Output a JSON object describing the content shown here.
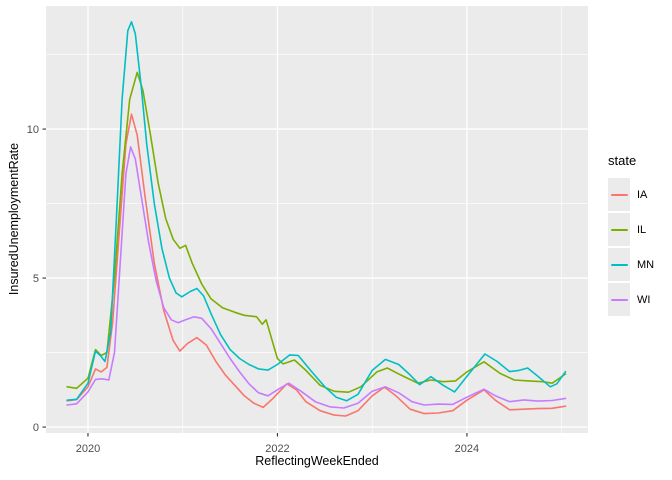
{
  "figure": {
    "background": "#FFFFFF",
    "panel_bg": "#EBEBEB",
    "grid_color": "#FFFFFF",
    "tick_mark_color": "#333333",
    "tick_label_color": "#4D4D4D",
    "axis_title_color": "#000000"
  },
  "axes": {
    "x_title": "ReflectingWeekEnded",
    "y_title": "InsuredUnemploymentRate",
    "x_ticks": [
      2020,
      2022,
      2024
    ],
    "x_tick_labels": [
      "2020",
      "2022",
      "2024"
    ],
    "x_minor_ticks": [
      2021,
      2023,
      2025
    ],
    "y_ticks": [
      0,
      5,
      10
    ],
    "y_tick_labels": [
      "0",
      "5",
      "10"
    ],
    "y_minor_ticks": [
      2.5,
      7.5,
      12.5
    ],
    "x_range": [
      2019.557,
      2025.278
    ],
    "y_range": [
      -0.2,
      14.13
    ]
  },
  "legend": {
    "title": "state",
    "position": "right",
    "entries": [
      {
        "label": "IA",
        "color": "#F8766D"
      },
      {
        "label": "IL",
        "color": "#7CAE00"
      },
      {
        "label": "MN",
        "color": "#00BFC4"
      },
      {
        "label": "WI",
        "color": "#C77CFF"
      }
    ]
  },
  "chart_data": {
    "type": "line",
    "title": "",
    "xlabel": "ReflectingWeekEnded",
    "ylabel": "InsuredUnemploymentRate",
    "xlim": [
      2019.557,
      2025.278
    ],
    "ylim": [
      -0.2,
      14.13
    ],
    "grid": true,
    "legend_position": "right",
    "legend_title": "state",
    "series": [
      {
        "name": "IA",
        "color": "#F8766D",
        "points": [
          [
            2019.78,
            0.88
          ],
          [
            2019.88,
            0.92
          ],
          [
            2020.0,
            1.35
          ],
          [
            2020.08,
            1.95
          ],
          [
            2020.14,
            1.85
          ],
          [
            2020.2,
            2.0
          ],
          [
            2020.26,
            3.5
          ],
          [
            2020.33,
            6.5
          ],
          [
            2020.4,
            9.5
          ],
          [
            2020.46,
            10.5
          ],
          [
            2020.52,
            9.8
          ],
          [
            2020.6,
            7.8
          ],
          [
            2020.7,
            5.5
          ],
          [
            2020.8,
            3.9
          ],
          [
            2020.9,
            2.9
          ],
          [
            2020.97,
            2.55
          ],
          [
            2021.05,
            2.8
          ],
          [
            2021.15,
            3.0
          ],
          [
            2021.25,
            2.75
          ],
          [
            2021.35,
            2.2
          ],
          [
            2021.45,
            1.75
          ],
          [
            2021.55,
            1.4
          ],
          [
            2021.65,
            1.05
          ],
          [
            2021.75,
            0.8
          ],
          [
            2021.85,
            0.66
          ],
          [
            2021.95,
            0.95
          ],
          [
            2022.1,
            1.45
          ],
          [
            2022.2,
            1.25
          ],
          [
            2022.3,
            0.85
          ],
          [
            2022.45,
            0.55
          ],
          [
            2022.6,
            0.4
          ],
          [
            2022.72,
            0.37
          ],
          [
            2022.85,
            0.55
          ],
          [
            2023.0,
            1.05
          ],
          [
            2023.13,
            1.34
          ],
          [
            2023.25,
            1.05
          ],
          [
            2023.4,
            0.6
          ],
          [
            2023.55,
            0.45
          ],
          [
            2023.7,
            0.47
          ],
          [
            2023.85,
            0.55
          ],
          [
            2024.0,
            0.9
          ],
          [
            2024.18,
            1.25
          ],
          [
            2024.3,
            0.9
          ],
          [
            2024.45,
            0.58
          ],
          [
            2024.6,
            0.6
          ],
          [
            2024.75,
            0.62
          ],
          [
            2024.9,
            0.63
          ],
          [
            2025.04,
            0.7
          ]
        ]
      },
      {
        "name": "IL",
        "color": "#7CAE00",
        "points": [
          [
            2019.78,
            1.35
          ],
          [
            2019.88,
            1.3
          ],
          [
            2020.0,
            1.64
          ],
          [
            2020.08,
            2.6
          ],
          [
            2020.14,
            2.4
          ],
          [
            2020.2,
            2.5
          ],
          [
            2020.28,
            5.0
          ],
          [
            2020.36,
            8.5
          ],
          [
            2020.44,
            11.0
          ],
          [
            2020.52,
            11.9
          ],
          [
            2020.58,
            11.3
          ],
          [
            2020.66,
            9.8
          ],
          [
            2020.74,
            8.2
          ],
          [
            2020.82,
            7.0
          ],
          [
            2020.9,
            6.3
          ],
          [
            2020.97,
            6.0
          ],
          [
            2021.03,
            6.1
          ],
          [
            2021.1,
            5.5
          ],
          [
            2021.2,
            4.8
          ],
          [
            2021.3,
            4.3
          ],
          [
            2021.42,
            4.0
          ],
          [
            2021.55,
            3.85
          ],
          [
            2021.65,
            3.75
          ],
          [
            2021.78,
            3.7
          ],
          [
            2021.84,
            3.45
          ],
          [
            2021.88,
            3.6
          ],
          [
            2022.0,
            2.3
          ],
          [
            2022.06,
            2.12
          ],
          [
            2022.18,
            2.25
          ],
          [
            2022.3,
            1.9
          ],
          [
            2022.45,
            1.4
          ],
          [
            2022.6,
            1.2
          ],
          [
            2022.75,
            1.17
          ],
          [
            2022.88,
            1.35
          ],
          [
            2023.05,
            1.85
          ],
          [
            2023.16,
            1.98
          ],
          [
            2023.3,
            1.75
          ],
          [
            2023.48,
            1.47
          ],
          [
            2023.62,
            1.58
          ],
          [
            2023.75,
            1.52
          ],
          [
            2023.88,
            1.55
          ],
          [
            2024.0,
            1.85
          ],
          [
            2024.18,
            2.19
          ],
          [
            2024.35,
            1.8
          ],
          [
            2024.5,
            1.58
          ],
          [
            2024.65,
            1.55
          ],
          [
            2024.8,
            1.52
          ],
          [
            2024.9,
            1.47
          ],
          [
            2025.04,
            1.78
          ]
        ]
      },
      {
        "name": "MN",
        "color": "#00BFC4",
        "points": [
          [
            2019.78,
            0.9
          ],
          [
            2019.88,
            0.93
          ],
          [
            2020.0,
            1.47
          ],
          [
            2020.08,
            2.55
          ],
          [
            2020.13,
            2.4
          ],
          [
            2020.18,
            2.2
          ],
          [
            2020.24,
            3.2
          ],
          [
            2020.3,
            7.0
          ],
          [
            2020.36,
            11.0
          ],
          [
            2020.42,
            13.3
          ],
          [
            2020.46,
            13.6
          ],
          [
            2020.5,
            13.2
          ],
          [
            2020.56,
            11.5
          ],
          [
            2020.62,
            9.5
          ],
          [
            2020.7,
            7.5
          ],
          [
            2020.78,
            6.0
          ],
          [
            2020.86,
            5.0
          ],
          [
            2020.93,
            4.5
          ],
          [
            2020.99,
            4.37
          ],
          [
            2021.08,
            4.55
          ],
          [
            2021.15,
            4.65
          ],
          [
            2021.22,
            4.4
          ],
          [
            2021.3,
            3.8
          ],
          [
            2021.4,
            3.1
          ],
          [
            2021.5,
            2.6
          ],
          [
            2021.6,
            2.3
          ],
          [
            2021.7,
            2.1
          ],
          [
            2021.8,
            1.95
          ],
          [
            2021.9,
            1.91
          ],
          [
            2022.0,
            2.1
          ],
          [
            2022.13,
            2.42
          ],
          [
            2022.22,
            2.4
          ],
          [
            2022.35,
            1.9
          ],
          [
            2022.5,
            1.35
          ],
          [
            2022.62,
            1.0
          ],
          [
            2022.73,
            0.88
          ],
          [
            2022.85,
            1.1
          ],
          [
            2023.0,
            1.9
          ],
          [
            2023.14,
            2.27
          ],
          [
            2023.28,
            2.1
          ],
          [
            2023.4,
            1.75
          ],
          [
            2023.5,
            1.42
          ],
          [
            2023.62,
            1.69
          ],
          [
            2023.75,
            1.4
          ],
          [
            2023.87,
            1.18
          ],
          [
            2024.0,
            1.7
          ],
          [
            2024.19,
            2.45
          ],
          [
            2024.32,
            2.2
          ],
          [
            2024.45,
            1.86
          ],
          [
            2024.55,
            1.9
          ],
          [
            2024.64,
            1.98
          ],
          [
            2024.75,
            1.7
          ],
          [
            2024.88,
            1.35
          ],
          [
            2024.95,
            1.45
          ],
          [
            2025.04,
            1.86
          ]
        ]
      },
      {
        "name": "WI",
        "color": "#C77CFF",
        "points": [
          [
            2019.78,
            0.74
          ],
          [
            2019.88,
            0.78
          ],
          [
            2020.0,
            1.18
          ],
          [
            2020.08,
            1.6
          ],
          [
            2020.15,
            1.62
          ],
          [
            2020.22,
            1.58
          ],
          [
            2020.28,
            2.5
          ],
          [
            2020.34,
            5.5
          ],
          [
            2020.4,
            8.5
          ],
          [
            2020.45,
            9.4
          ],
          [
            2020.5,
            9.0
          ],
          [
            2020.56,
            7.8
          ],
          [
            2020.64,
            6.2
          ],
          [
            2020.72,
            4.9
          ],
          [
            2020.8,
            4.0
          ],
          [
            2020.88,
            3.6
          ],
          [
            2020.95,
            3.5
          ],
          [
            2021.03,
            3.6
          ],
          [
            2021.12,
            3.7
          ],
          [
            2021.2,
            3.65
          ],
          [
            2021.3,
            3.3
          ],
          [
            2021.4,
            2.8
          ],
          [
            2021.5,
            2.3
          ],
          [
            2021.6,
            1.85
          ],
          [
            2021.7,
            1.45
          ],
          [
            2021.8,
            1.15
          ],
          [
            2021.9,
            1.05
          ],
          [
            2022.0,
            1.25
          ],
          [
            2022.12,
            1.47
          ],
          [
            2022.25,
            1.2
          ],
          [
            2022.4,
            0.85
          ],
          [
            2022.55,
            0.68
          ],
          [
            2022.7,
            0.64
          ],
          [
            2022.85,
            0.8
          ],
          [
            2023.0,
            1.2
          ],
          [
            2023.14,
            1.35
          ],
          [
            2023.28,
            1.15
          ],
          [
            2023.42,
            0.85
          ],
          [
            2023.55,
            0.74
          ],
          [
            2023.7,
            0.77
          ],
          [
            2023.85,
            0.76
          ],
          [
            2024.0,
            1.0
          ],
          [
            2024.18,
            1.27
          ],
          [
            2024.3,
            1.05
          ],
          [
            2024.45,
            0.85
          ],
          [
            2024.6,
            0.91
          ],
          [
            2024.75,
            0.87
          ],
          [
            2024.9,
            0.89
          ],
          [
            2025.04,
            0.96
          ]
        ]
      }
    ]
  }
}
